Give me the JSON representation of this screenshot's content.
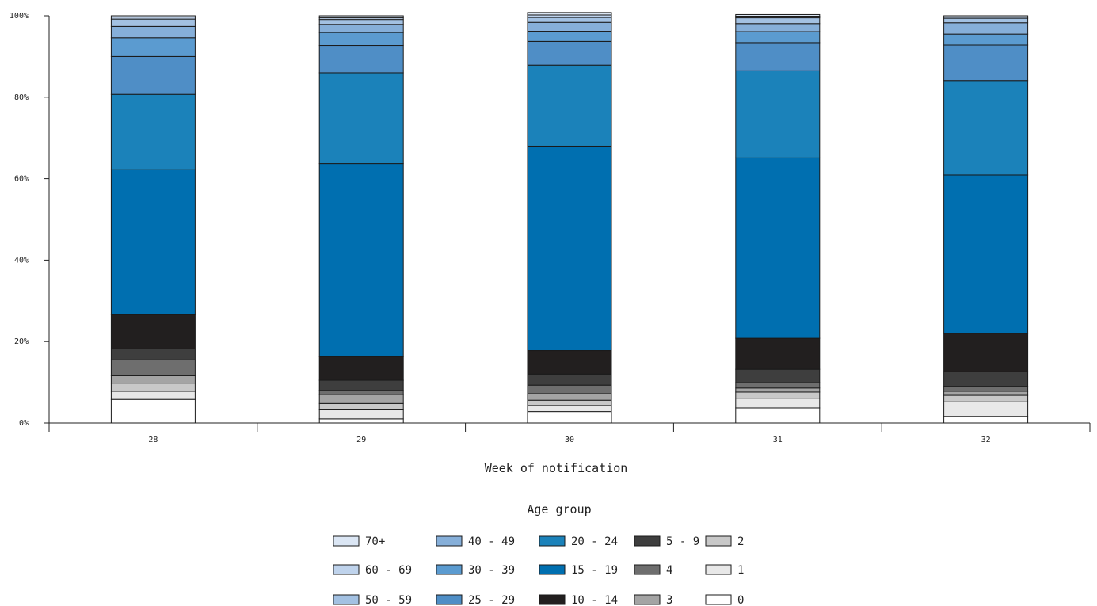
{
  "chart_data": {
    "type": "bar",
    "stacked": true,
    "normalized": true,
    "categories": [
      "28",
      "29",
      "30",
      "31",
      "32"
    ],
    "xlabel": "Week of notification",
    "ylabel": "",
    "ylim": [
      0,
      100
    ],
    "yticks": [
      "0%",
      "20%",
      "40%",
      "60%",
      "80%",
      "100%"
    ],
    "legend_title": "Age group",
    "legend_position": "bottom-center",
    "grid": false,
    "series": [
      {
        "name": "0",
        "color": "#ffffff",
        "values": [
          5.8,
          1.0,
          2.8,
          3.7,
          1.6
        ]
      },
      {
        "name": "1",
        "color": "#e8e8e8",
        "values": [
          2.0,
          2.4,
          1.5,
          2.4,
          3.6
        ]
      },
      {
        "name": "2",
        "color": "#c8c8c8",
        "values": [
          2.0,
          1.4,
          1.3,
          1.5,
          1.6
        ]
      },
      {
        "name": "3",
        "color": "#a4a4a4",
        "values": [
          1.8,
          2.2,
          1.6,
          1.0,
          1.0
        ]
      },
      {
        "name": "4",
        "color": "#6e6e6e",
        "values": [
          3.9,
          1.0,
          2.1,
          1.3,
          1.2
        ]
      },
      {
        "name": "5 - 9",
        "color": "#3e3e3e",
        "values": [
          2.7,
          2.5,
          2.7,
          3.3,
          3.6
        ]
      },
      {
        "name": "10 - 14",
        "color": "#221f1f",
        "values": [
          8.4,
          5.8,
          5.8,
          7.6,
          9.4
        ]
      },
      {
        "name": "15 - 19",
        "color": "#006fb0",
        "values": [
          35.6,
          47.4,
          50.2,
          44.3,
          38.9
        ]
      },
      {
        "name": "20 - 24",
        "color": "#1b82ba",
        "values": [
          18.5,
          22.3,
          19.9,
          21.4,
          23.2
        ]
      },
      {
        "name": "25 - 29",
        "color": "#4f8ec6",
        "values": [
          9.3,
          6.7,
          5.8,
          6.9,
          8.7
        ]
      },
      {
        "name": "30 - 39",
        "color": "#5b9bd0",
        "values": [
          4.6,
          3.2,
          2.5,
          2.7,
          2.7
        ]
      },
      {
        "name": "40 - 49",
        "color": "#86afd9",
        "values": [
          2.8,
          2.0,
          2.2,
          2.0,
          2.8
        ]
      },
      {
        "name": "50 - 59",
        "color": "#a3c1e2",
        "values": [
          1.8,
          1.2,
          1.2,
          1.4,
          1.1
        ]
      },
      {
        "name": "60 - 69",
        "color": "#bfd3ec",
        "values": [
          0.5,
          0.4,
          0.6,
          0.4,
          0.3
        ]
      },
      {
        "name": "70+",
        "color": "#dbe6f4",
        "values": [
          0.3,
          0.5,
          0.6,
          0.4,
          0.3
        ]
      }
    ]
  }
}
